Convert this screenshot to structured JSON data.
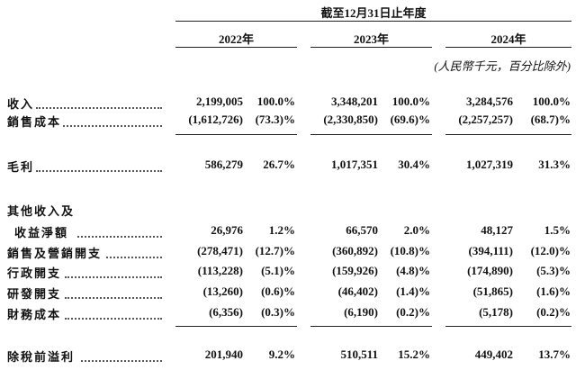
{
  "header": {
    "period_title": "截至12月31日止年度",
    "years": [
      "2022年",
      "2023年",
      "2024年"
    ],
    "unit_note": "(人民幣千元，百分比除外)"
  },
  "rows": [
    {
      "label": "收入",
      "v2022": "2,199,005",
      "p2022": "100.0%",
      "v2023": "3,348,201",
      "p2023": "100.0%",
      "v2024": "3,284,576",
      "p2024": "100.0%"
    },
    {
      "label": "銷售成本",
      "v2022": "(1,612,726)",
      "p2022": "(73.3)%",
      "v2023": "(2,330,850)",
      "p2023": "(69.6)%",
      "v2024": "(2,257,257)",
      "p2024": "(68.7)%"
    },
    {
      "label": "毛利",
      "v2022": "586,279",
      "p2022": "26.7%",
      "v2023": "1,017,351",
      "p2023": "30.4%",
      "v2024": "1,027,319",
      "p2024": "31.3%"
    },
    {
      "label_line1": "其他收入及",
      "label": "收益淨額",
      "v2022": "26,976",
      "p2022": "1.2%",
      "v2023": "66,570",
      "p2023": "2.0%",
      "v2024": "48,127",
      "p2024": "1.5%"
    },
    {
      "label": "銷售及營銷開支",
      "v2022": "(278,471)",
      "p2022": "(12.7)%",
      "v2023": "(360,892)",
      "p2023": "(10.8)%",
      "v2024": "(394,111)",
      "p2024": "(12.0)%"
    },
    {
      "label": "行政開支",
      "v2022": "(113,228)",
      "p2022": "(5.1)%",
      "v2023": "(159,926)",
      "p2023": "(4.8)%",
      "v2024": "(174,890)",
      "p2024": "(5.3)%"
    },
    {
      "label": "研發開支",
      "v2022": "(13,260)",
      "p2022": "(0.6)%",
      "v2023": "(46,402)",
      "p2023": "(1.4)%",
      "v2024": "(51,865)",
      "p2024": "(1.6)%"
    },
    {
      "label": "財務成本",
      "v2022": "(6,356)",
      "p2022": "(0.3)%",
      "v2023": "(6,190)",
      "p2023": "(0.2)%",
      "v2024": "(5,178)",
      "p2024": "(0.2)%"
    },
    {
      "label": "除稅前溢利",
      "v2022": "201,940",
      "p2022": "9.2%",
      "v2023": "510,511",
      "p2023": "15.2%",
      "v2024": "449,402",
      "p2024": "13.7%"
    }
  ]
}
